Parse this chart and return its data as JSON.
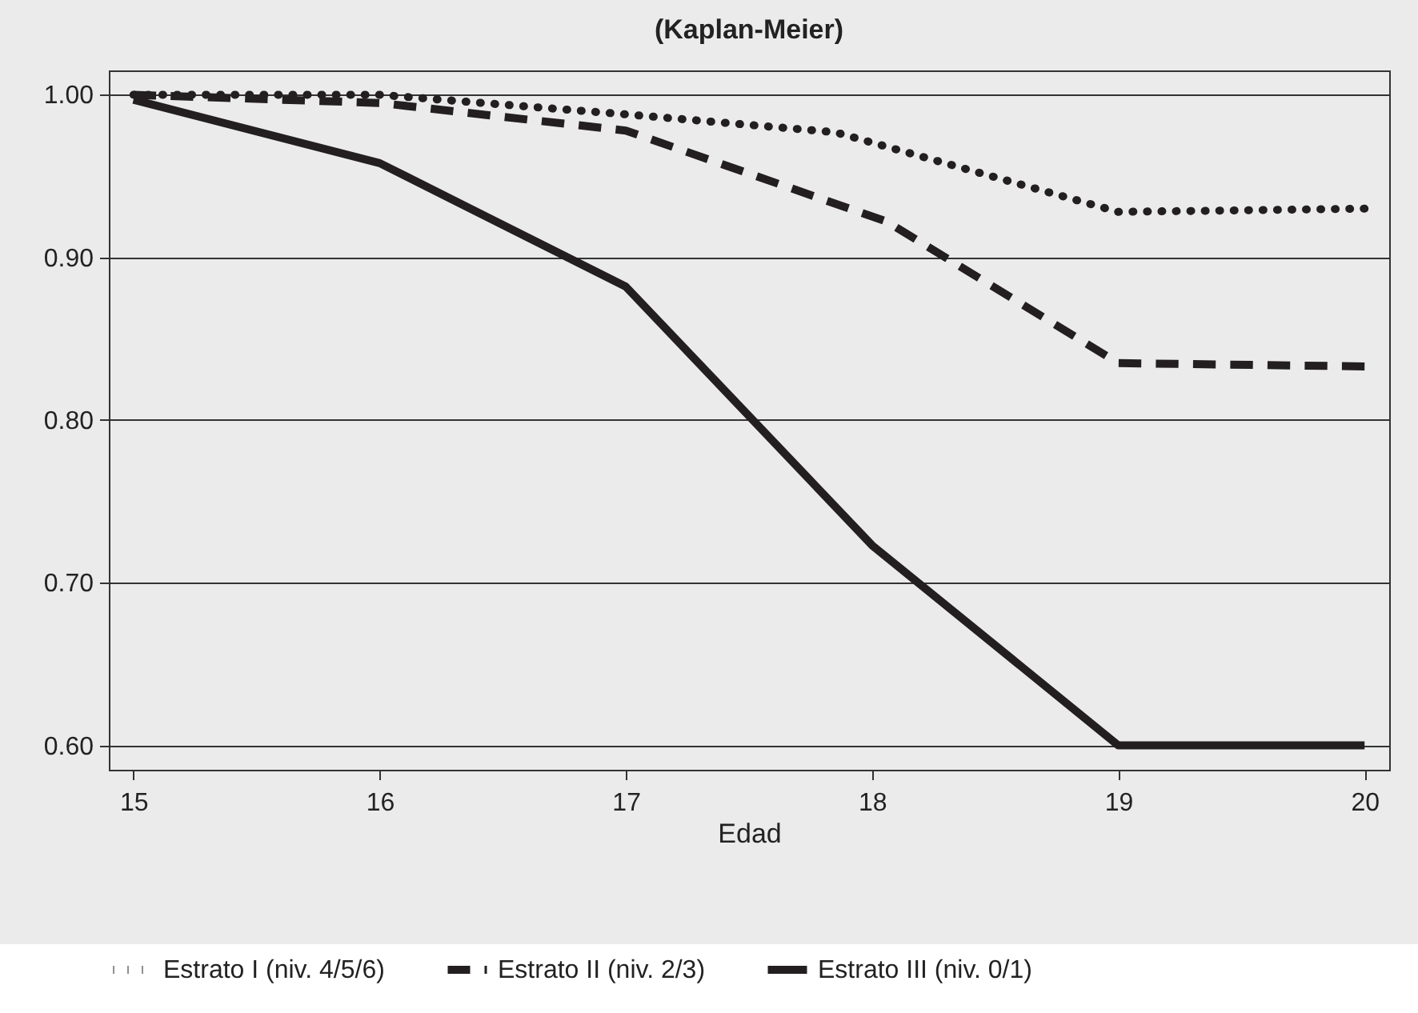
{
  "chart_data": {
    "type": "line",
    "title": "(Kaplan-Meier)",
    "xlabel": "Edad",
    "xlim": [
      14.9,
      20.1
    ],
    "xticks": [
      15,
      16,
      17,
      18,
      19,
      20
    ],
    "ylim": [
      0.585,
      1.015
    ],
    "yticks": [
      {
        "value": 0.6,
        "label": "0.60"
      },
      {
        "value": 0.7,
        "label": "0.70"
      },
      {
        "value": 0.8,
        "label": "0.80"
      },
      {
        "value": 0.9,
        "label": "0.90"
      },
      {
        "value": 1.0,
        "label": "1.00"
      }
    ],
    "grid": "y",
    "legend": "bottom",
    "series": [
      {
        "name": "Estrato I (niv. 4/5/6)",
        "color": "#231f20",
        "line_style": "dotted",
        "x": [
          15,
          16,
          17,
          17.85,
          19,
          20
        ],
        "values": [
          1.0,
          1.0,
          0.988,
          0.977,
          0.928,
          0.93
        ]
      },
      {
        "name": "Estrato II (niv. 2/3)",
        "color": "#231f20",
        "line_style": "dashed",
        "x": [
          15,
          16,
          17,
          18.06,
          19,
          20
        ],
        "values": [
          1.0,
          0.995,
          0.978,
          0.922,
          0.835,
          0.833
        ]
      },
      {
        "name": "Estrato III (niv. 0/1)",
        "color": "#231f20",
        "line_style": "solid",
        "x": [
          15,
          16,
          17,
          18,
          19,
          20
        ],
        "values": [
          0.997,
          0.958,
          0.882,
          0.723,
          0.6,
          0.6
        ]
      }
    ]
  }
}
